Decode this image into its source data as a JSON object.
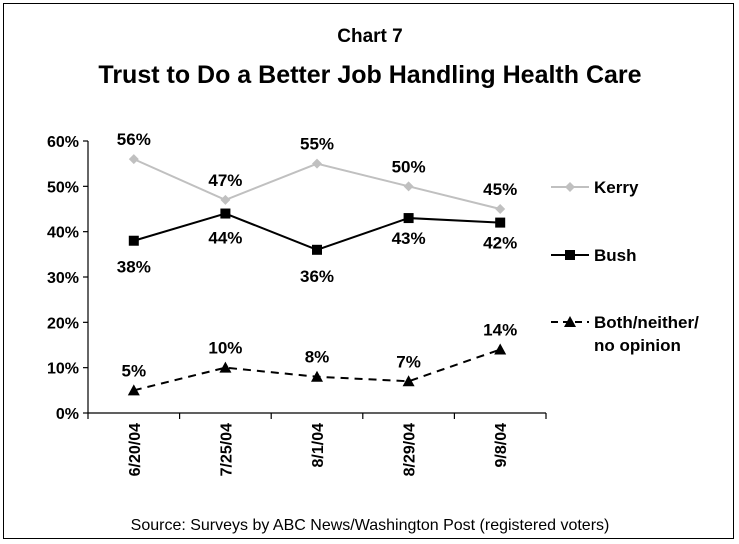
{
  "chart_data": {
    "type": "line",
    "title_top": "Chart 7",
    "title": "Trust to Do a Better Job Handling Health Care",
    "categories": [
      "6/20/04",
      "7/25/04",
      "8/1/04",
      "8/29/04",
      "9/8/04"
    ],
    "y_ticks": [
      "0%",
      "10%",
      "20%",
      "30%",
      "40%",
      "50%",
      "60%"
    ],
    "ylim": [
      0,
      60
    ],
    "series": [
      {
        "name": "Kerry",
        "values": [
          56,
          47,
          55,
          50,
          45
        ],
        "labels": [
          "56%",
          "47%",
          "55%",
          "50%",
          "45%"
        ],
        "color": "#c0c0c0",
        "marker": "diamond",
        "dash": "solid"
      },
      {
        "name": "Bush",
        "values": [
          38,
          44,
          36,
          43,
          42
        ],
        "labels": [
          "38%",
          "44%",
          "36%",
          "43%",
          "42%"
        ],
        "color": "#000000",
        "marker": "square",
        "dash": "solid"
      },
      {
        "name": "Both/neither/",
        "name_line2": "no opinion",
        "values": [
          5,
          10,
          8,
          7,
          14
        ],
        "labels": [
          "5%",
          "10%",
          "8%",
          "7%",
          "14%"
        ],
        "color": "#000000",
        "marker": "triangle",
        "dash": "dashed"
      }
    ],
    "source": "Source: Surveys by ABC News/Washington Post (registered voters)"
  }
}
